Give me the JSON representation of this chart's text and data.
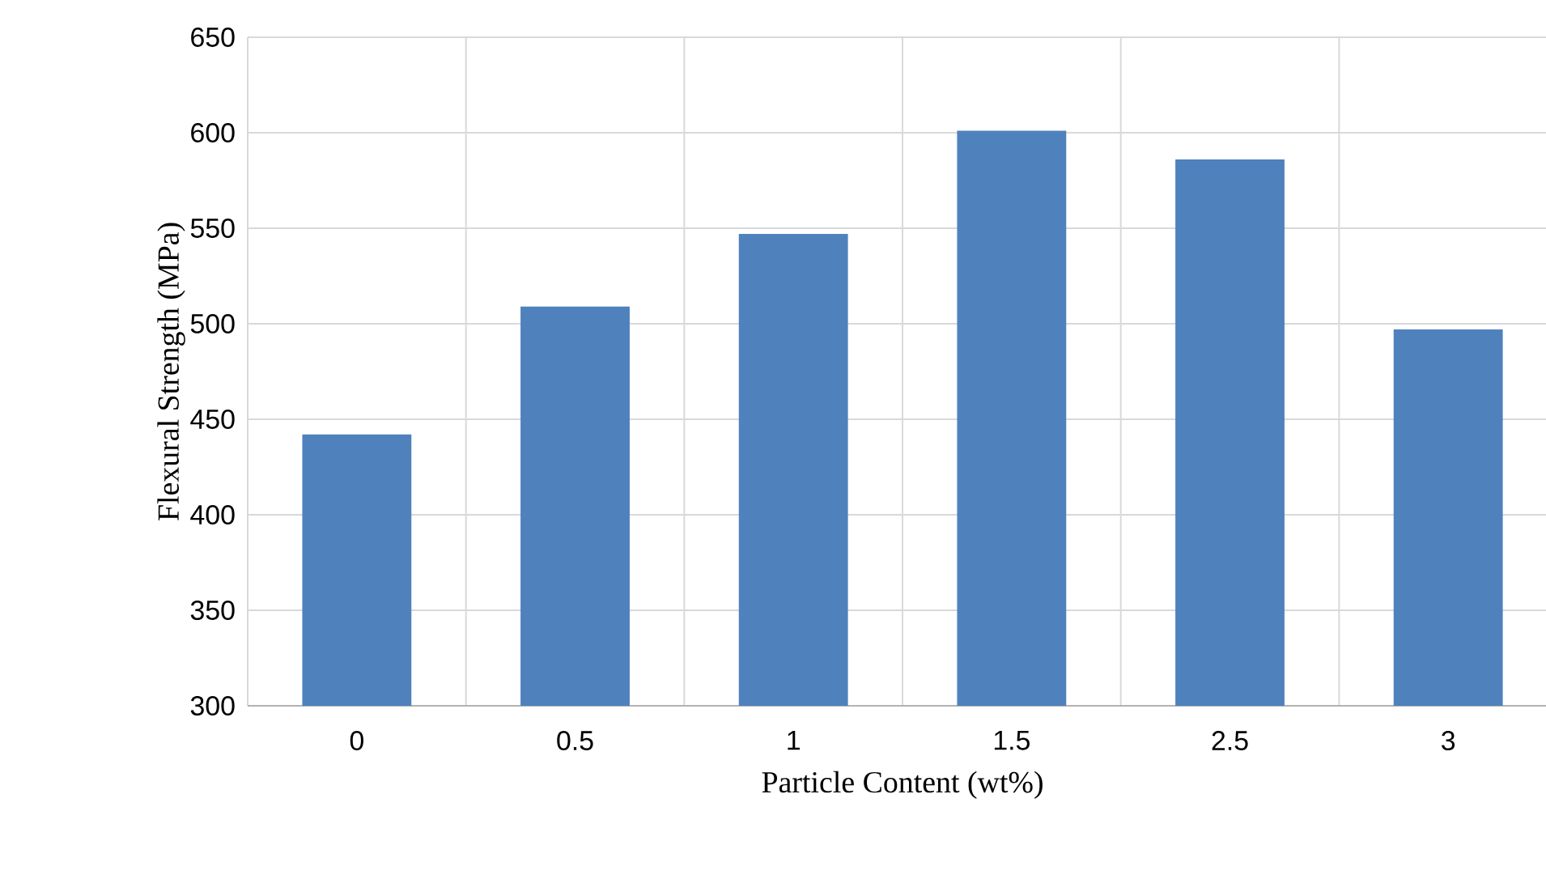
{
  "chart_data": {
    "type": "bar",
    "xlabel": "Particle Content (wt%)",
    "ylabel": "Flexural Strength (MPa)",
    "categories": [
      "0",
      "0.5",
      "1",
      "1.5",
      "2.5",
      "3"
    ],
    "values": [
      442,
      509,
      547,
      601,
      586,
      497
    ],
    "color": "#4f81bd",
    "ylim": [
      300,
      650
    ],
    "yticks": [
      300,
      350,
      400,
      450,
      500,
      550,
      600,
      650
    ],
    "grid": true
  }
}
